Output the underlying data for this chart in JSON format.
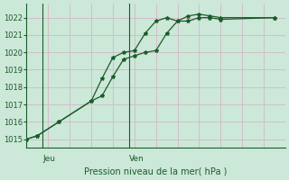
{
  "title": "Pression niveau de la mer( hPa )",
  "ylim": [
    1014.5,
    1022.8
  ],
  "yticks": [
    1015,
    1016,
    1017,
    1018,
    1019,
    1020,
    1021,
    1022
  ],
  "xlim": [
    0,
    24
  ],
  "bg_color": "#cce8d8",
  "grid_color_h": "#d4b8c8",
  "grid_color_v": "#d4b8c8",
  "line_color": "#1a5c2a",
  "series1_x": [
    0,
    1,
    3,
    6,
    7,
    8,
    9,
    10,
    11,
    12,
    13,
    14,
    15,
    16,
    17,
    18,
    23
  ],
  "series1_y": [
    1015.0,
    1015.2,
    1016.0,
    1017.2,
    1017.5,
    1018.6,
    1019.6,
    1019.8,
    1020.0,
    1020.1,
    1021.1,
    1021.8,
    1022.1,
    1022.2,
    1022.1,
    1022.0,
    1022.0
  ],
  "series2_x": [
    0,
    1,
    3,
    6,
    7,
    8,
    9,
    10,
    11,
    12,
    13,
    14,
    15,
    16,
    17,
    18,
    23
  ],
  "series2_y": [
    1015.0,
    1015.2,
    1016.0,
    1017.2,
    1018.5,
    1019.7,
    1020.0,
    1020.1,
    1021.1,
    1021.8,
    1022.0,
    1021.8,
    1021.8,
    1022.0,
    1022.0,
    1021.9,
    1022.0
  ],
  "jeu_x": 1.5,
  "ven_x": 9.5,
  "day_line_x": 1.5,
  "day_line_x2": 9.5,
  "num_x_grid": 24
}
